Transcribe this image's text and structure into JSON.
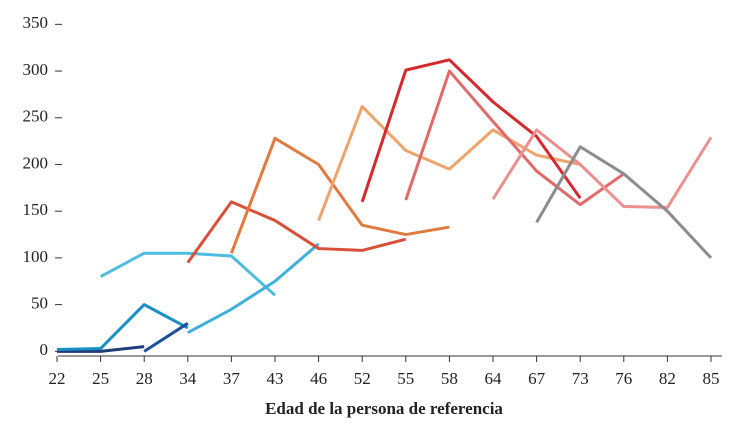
{
  "chart_data": {
    "type": "line",
    "xlabel": "Edad de la persona de referencia",
    "categories": [
      "22",
      "25",
      "28",
      "34",
      "37",
      "43",
      "46",
      "52",
      "55",
      "58",
      "64",
      "67",
      "73",
      "76",
      "82",
      "85"
    ],
    "ylim": [
      -5,
      360
    ],
    "yticks": [
      0,
      50,
      100,
      150,
      200,
      250,
      300,
      350
    ],
    "grid": false,
    "series": [
      {
        "color": "#1f3d7a",
        "values": [
          0,
          0,
          5,
          null,
          null,
          null,
          null,
          null,
          null,
          null,
          null,
          null,
          null,
          null,
          null,
          null
        ]
      },
      {
        "color": "#1a8fc4",
        "values": [
          2,
          3,
          50,
          25,
          null,
          null,
          null,
          null,
          null,
          null,
          null,
          null,
          null,
          null,
          null,
          null
        ]
      },
      {
        "color": "#1f4f9a",
        "values": [
          null,
          null,
          0,
          30,
          null,
          null,
          null,
          null,
          null,
          null,
          null,
          null,
          null,
          null,
          null,
          null
        ]
      },
      {
        "color": "#4dbde0",
        "values": [
          null,
          80,
          105,
          105,
          102,
          60,
          null,
          null,
          null,
          null,
          null,
          null,
          null,
          null,
          null,
          null
        ]
      },
      {
        "color": "#3fb0dc",
        "values": [
          null,
          null,
          null,
          20,
          45,
          75,
          115,
          null,
          null,
          null,
          null,
          null,
          null,
          null,
          null,
          null
        ]
      },
      {
        "color": "#d9503a",
        "values": [
          null,
          null,
          null,
          95,
          160,
          140,
          110,
          108,
          120,
          null,
          null,
          null,
          null,
          null,
          null,
          null
        ]
      },
      {
        "color": "#e07a3f",
        "values": [
          null,
          null,
          null,
          null,
          105,
          228,
          200,
          135,
          125,
          133,
          null,
          null,
          null,
          null,
          null,
          null
        ]
      },
      {
        "color": "#eea46a",
        "values": [
          null,
          null,
          null,
          null,
          null,
          null,
          140,
          262,
          215,
          195,
          237,
          210,
          200,
          null,
          null,
          null
        ]
      },
      {
        "color": "#d42a2e",
        "values": [
          null,
          null,
          null,
          null,
          null,
          null,
          null,
          160,
          301,
          312,
          267,
          230,
          164,
          null,
          null,
          null
        ]
      },
      {
        "color": "#e06a6a",
        "values": [
          null,
          null,
          null,
          null,
          null,
          null,
          null,
          null,
          162,
          300,
          246,
          193,
          157,
          190,
          null,
          null
        ]
      },
      {
        "color": "#eb8f8f",
        "values": [
          null,
          null,
          null,
          null,
          null,
          null,
          null,
          null,
          null,
          null,
          163,
          237,
          200,
          155,
          154,
          229
        ]
      },
      {
        "color": "#8c8c8c",
        "values": [
          null,
          null,
          null,
          null,
          null,
          null,
          null,
          null,
          null,
          null,
          null,
          138,
          219,
          190,
          150,
          100
        ]
      }
    ]
  }
}
